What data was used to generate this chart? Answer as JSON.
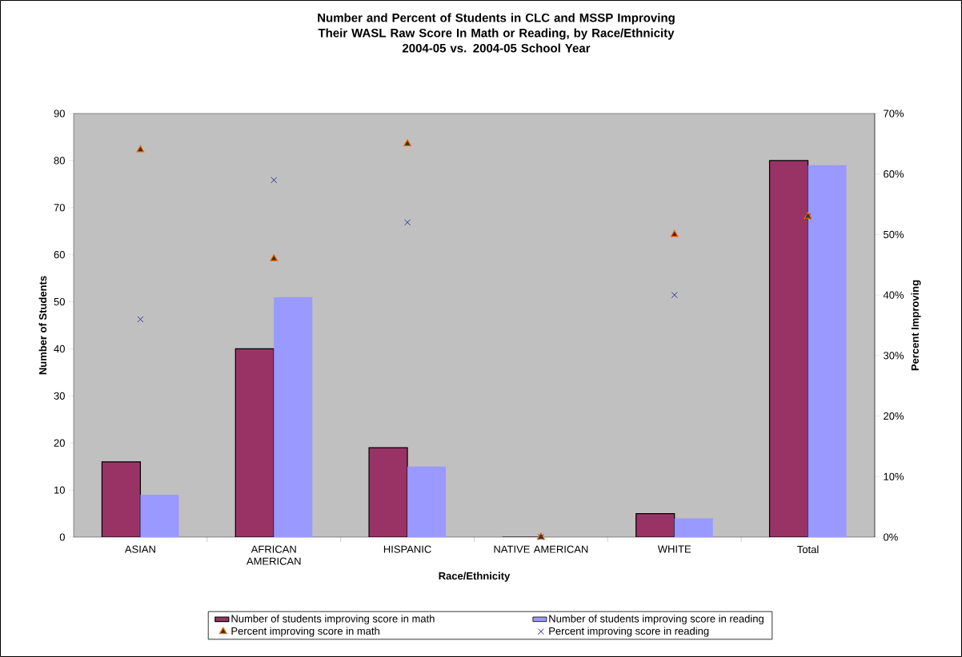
{
  "chart_data": {
    "type": "bar",
    "title": "Number and Percent of Students in CLC and MSSP Improving Their WASL Raw Score In Math or Reading, by Race/Ethnicity",
    "subtitle": "2004-05 vs. 2004-05 School Year",
    "xlabel": "Race/Ethnicity",
    "ylabel": "Number of Students",
    "y2label": "Percent Improving",
    "categories": [
      "ASIAN",
      "AFRICAN AMERICAN",
      "HISPANIC",
      "NATIVE AMERICAN",
      "WHITE",
      "Total"
    ],
    "series": [
      {
        "name": "Number of students improving score in math",
        "color": "#993366",
        "values": [
          16,
          40,
          19,
          0,
          5,
          80
        ]
      },
      {
        "name": "Number of students improving score in reading",
        "color": "#9999ff",
        "values": [
          9,
          51,
          15,
          0,
          4,
          79
        ]
      },
      {
        "name": "Percent improving score in math",
        "type": "scatter",
        "axis": "y2",
        "marker": "triangle",
        "color": "#ff6600",
        "values": [
          64,
          46,
          65,
          0,
          50,
          53
        ]
      },
      {
        "name": "Percent improving score in reading",
        "type": "scatter",
        "axis": "y2",
        "marker": "cross",
        "color": "#333399",
        "values": [
          36,
          59,
          52,
          0,
          40,
          53
        ]
      }
    ],
    "ylim": [
      0,
      90
    ],
    "yticks": [
      0,
      10,
      20,
      30,
      40,
      50,
      60,
      70,
      80,
      90
    ],
    "y2lim": [
      0,
      70
    ],
    "y2ticks": [
      {
        "value": 0,
        "label": "0%"
      },
      {
        "value": 10,
        "label": "10%"
      },
      {
        "value": 20,
        "label": "20%"
      },
      {
        "value": 30,
        "label": "30%"
      },
      {
        "value": 40,
        "label": "40%"
      },
      {
        "value": 50,
        "label": "50%"
      },
      {
        "value": 60,
        "label": "60%"
      },
      {
        "value": 70,
        "label": "70%"
      }
    ],
    "legend": "bottom"
  }
}
